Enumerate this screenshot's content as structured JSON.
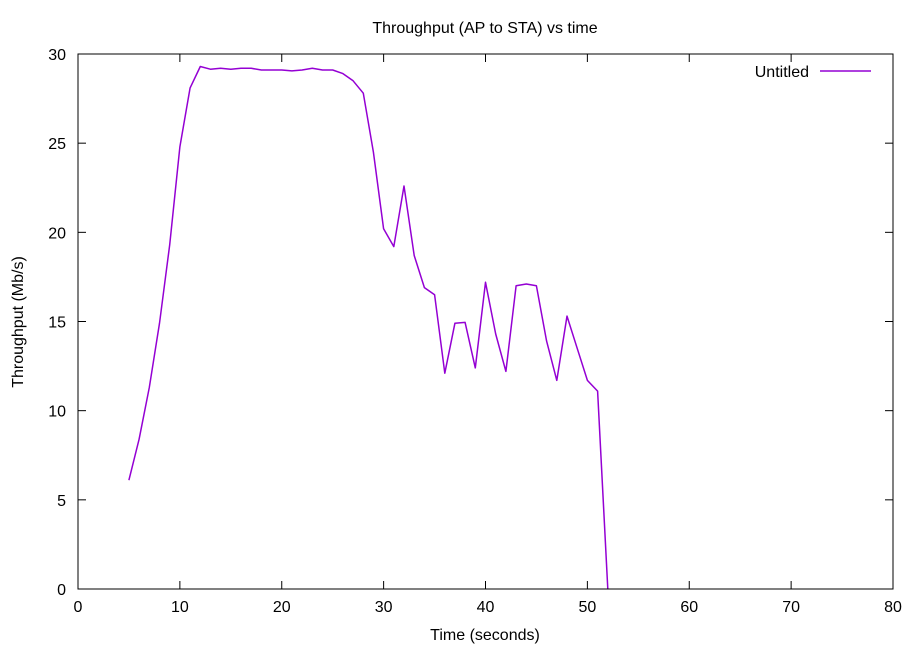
{
  "chart_data": {
    "type": "line",
    "title": "Throughput (AP to STA) vs time",
    "xlabel": "Time (seconds)",
    "ylabel": "Throughput (Mb/s)",
    "xlim": [
      0,
      80
    ],
    "ylim": [
      0,
      30
    ],
    "x_ticks": [
      0,
      10,
      20,
      30,
      40,
      50,
      60,
      70,
      80
    ],
    "y_ticks": [
      0,
      5,
      10,
      15,
      20,
      25,
      30
    ],
    "grid": false,
    "legend_position": "top-right",
    "series": [
      {
        "name": "Untitled",
        "color": "#9400d3",
        "x": [
          5,
          6,
          7,
          8,
          9,
          10,
          11,
          12,
          13,
          14,
          15,
          16,
          17,
          18,
          19,
          20,
          21,
          22,
          23,
          24,
          25,
          26,
          27,
          28,
          29,
          30,
          31,
          32,
          33,
          34,
          35,
          36,
          37,
          38,
          39,
          40,
          41,
          42,
          43,
          44,
          45,
          46,
          47,
          48,
          49,
          50,
          51,
          52
        ],
        "y": [
          6.1,
          8.4,
          11.3,
          14.9,
          19.3,
          24.8,
          28.1,
          29.3,
          29.15,
          29.2,
          29.15,
          29.2,
          29.2,
          29.1,
          29.1,
          29.1,
          29.05,
          29.1,
          29.2,
          29.1,
          29.1,
          28.9,
          28.5,
          27.8,
          24.5,
          20.2,
          19.2,
          22.6,
          18.7,
          16.9,
          16.5,
          12.1,
          14.9,
          14.95,
          12.4,
          17.2,
          14.3,
          12.2,
          17.0,
          17.1,
          17.0,
          13.9,
          11.7,
          15.3,
          13.5,
          11.7,
          11.1,
          0.0
        ]
      }
    ]
  }
}
